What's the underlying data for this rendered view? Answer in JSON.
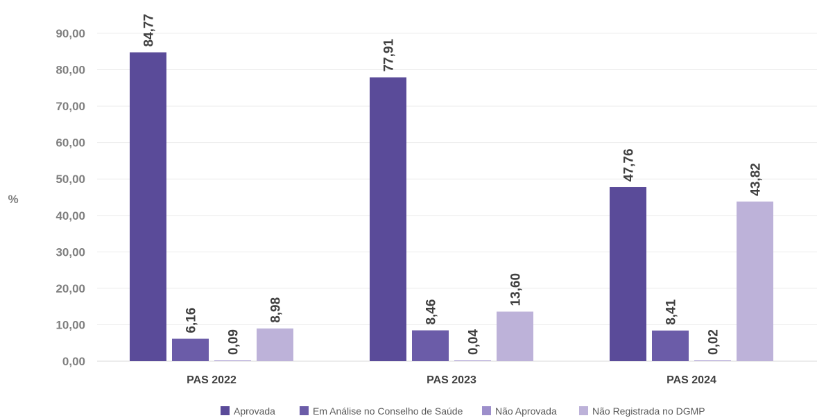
{
  "chart_data": {
    "type": "bar",
    "ylabel": "%",
    "ylim": [
      0,
      90
    ],
    "yticks": [
      "0,00",
      "10,00",
      "20,00",
      "30,00",
      "40,00",
      "50,00",
      "60,00",
      "70,00",
      "80,00",
      "90,00"
    ],
    "grid": true,
    "legend_position": "bottom",
    "categories": [
      "PAS 2022",
      "PAS 2023",
      "PAS 2024"
    ],
    "series": [
      {
        "name": "Aprovada",
        "color": "#5a4b99",
        "values": [
          84.77,
          77.91,
          47.76
        ],
        "labels": [
          "84,77",
          "77,91",
          "47,76"
        ]
      },
      {
        "name": "Em Análise no Conselho de Saúde",
        "color": "#6b5ca8",
        "values": [
          6.16,
          8.46,
          8.41
        ],
        "labels": [
          "6,16",
          "8,46",
          "8,41"
        ]
      },
      {
        "name": "Não Aprovada",
        "color": "#9d8fcb",
        "values": [
          0.09,
          0.04,
          0.02
        ],
        "labels": [
          "0,09",
          "0,04",
          "0,02"
        ]
      },
      {
        "name": "Não Registrada no DGMP",
        "color": "#bdb2d9",
        "values": [
          8.98,
          13.6,
          43.82
        ],
        "labels": [
          "8,98",
          "13,60",
          "43,82"
        ]
      }
    ]
  }
}
